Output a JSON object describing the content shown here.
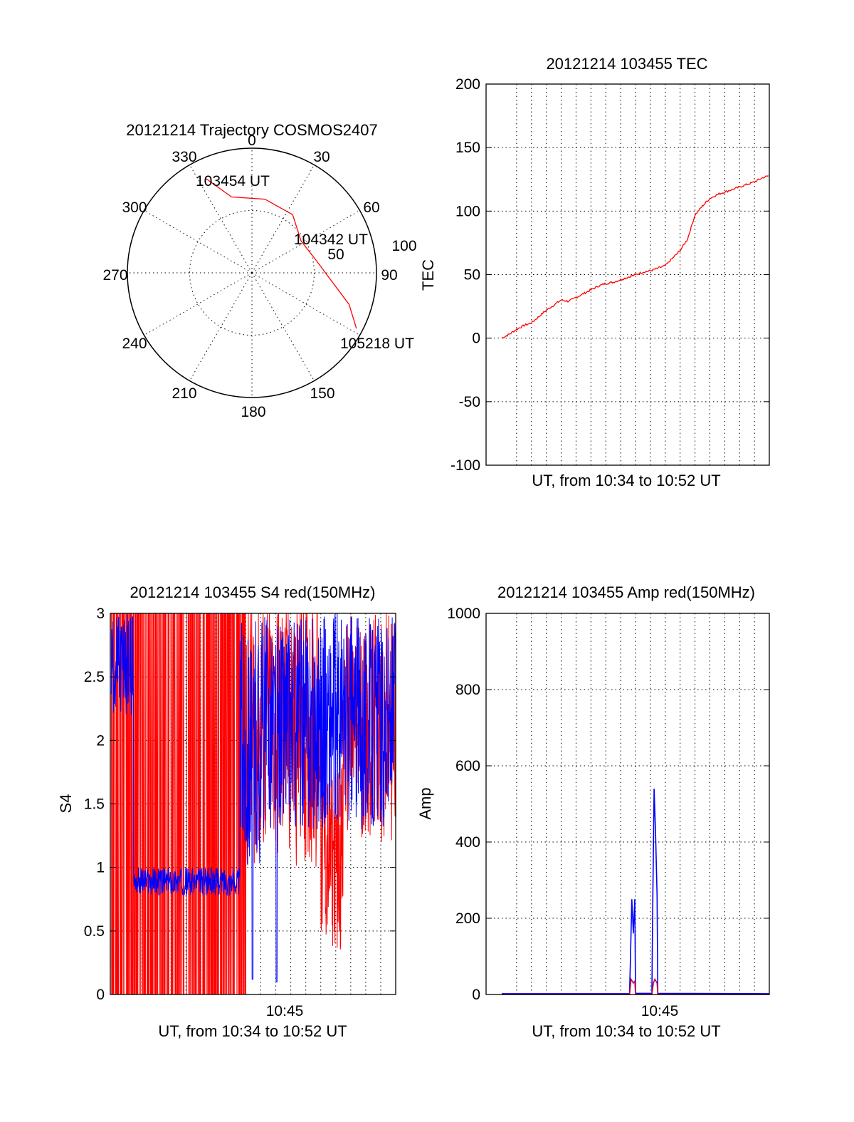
{
  "chart_data": [
    {
      "type": "polar",
      "title": "20121214 Trajectory COSMOS2407",
      "azimuth_labels": [
        "0",
        "30",
        "60",
        "90",
        "150",
        "180",
        "210",
        "240",
        "270",
        "300",
        "330"
      ],
      "radial_labels": [
        "50",
        "100"
      ],
      "radial_range": [
        0,
        100
      ],
      "annotations": [
        "103454 UT",
        "104342 UT",
        "105218 UT"
      ],
      "series": [
        {
          "name": "trajectory",
          "color": "#ff0000",
          "points": [
            {
              "az": 334,
              "el": 84
            },
            {
              "az": 345,
              "el": 63
            },
            {
              "az": 10,
              "el": 60
            },
            {
              "az": 35,
              "el": 57
            },
            {
              "az": 57,
              "el": 47
            },
            {
              "az": 80,
              "el": 53
            },
            {
              "az": 108,
              "el": 82
            },
            {
              "az": 118,
              "el": 95
            }
          ]
        }
      ]
    },
    {
      "type": "line",
      "title": "20121214 103455 TEC",
      "xlabel": "UT, from 10:34 to 10:52 UT",
      "ylabel": "TEC",
      "ylim": [
        -100,
        200
      ],
      "yticks": [
        "-100",
        "-50",
        "0",
        "50",
        "100",
        "150",
        "200"
      ],
      "xlim": [
        0,
        18
      ],
      "series": [
        {
          "name": "TEC",
          "color": "#ff0000",
          "x": [
            0,
            0.5,
            1,
            1.5,
            2,
            2.5,
            3,
            3.5,
            4,
            4.5,
            5,
            5.5,
            6,
            6.5,
            7,
            7.5,
            8,
            8.5,
            9,
            9.5,
            10,
            10.5,
            11,
            11.5,
            12,
            12.5,
            13,
            13.5,
            14,
            14.5,
            15,
            15.5,
            16,
            16.5,
            17,
            17.5,
            18
          ],
          "values": [
            0,
            3,
            7,
            10,
            12,
            17,
            22,
            26,
            30,
            29,
            32,
            35,
            38,
            41,
            43,
            44,
            46,
            48,
            50,
            52,
            53,
            55,
            57,
            63,
            69,
            78,
            97,
            104,
            110,
            113,
            115,
            117,
            119,
            121,
            123,
            126,
            128
          ]
        }
      ]
    },
    {
      "type": "line",
      "title": "20121214 103455 S4 red(150MHz)",
      "xlabel": "UT, from 10:34 to 10:52 UT",
      "ylabel": "S4",
      "ylim": [
        0,
        3
      ],
      "yticks": [
        "0",
        "0.5",
        "1",
        "1.5",
        "2",
        "2.5",
        "3"
      ],
      "xlim": [
        0,
        18
      ],
      "xtick_label": "10:45",
      "series": [
        {
          "name": "red",
          "color": "#ff0000"
        },
        {
          "name": "blue",
          "color": "#0000ff"
        }
      ]
    },
    {
      "type": "line",
      "title": "20121214 103455 Amp red(150MHz)",
      "xlabel": "UT, from 10:34 to 10:52 UT",
      "ylabel": "Amp",
      "ylim": [
        0,
        1000
      ],
      "yticks": [
        "0",
        "200",
        "400",
        "600",
        "800",
        "1000"
      ],
      "xlim": [
        0,
        18
      ],
      "xtick_label": "10:45",
      "series": [
        {
          "name": "blue",
          "color": "#0000ff",
          "x": [
            0,
            8.6,
            8.65,
            8.75,
            8.85,
            8.95,
            9.0,
            10.1,
            10.15,
            10.25,
            10.35,
            10.45,
            10.5,
            18
          ],
          "values": [
            2,
            2,
            80,
            250,
            160,
            250,
            3,
            3,
            200,
            540,
            420,
            260,
            3,
            2
          ]
        },
        {
          "name": "red",
          "color": "#cc0033",
          "x": [
            0,
            8.6,
            8.7,
            8.85,
            8.95,
            9.0,
            10.1,
            10.2,
            10.3,
            10.45,
            10.5,
            18
          ],
          "values": [
            0,
            0,
            40,
            30,
            35,
            0,
            0,
            30,
            40,
            30,
            0,
            0
          ]
        }
      ]
    }
  ]
}
